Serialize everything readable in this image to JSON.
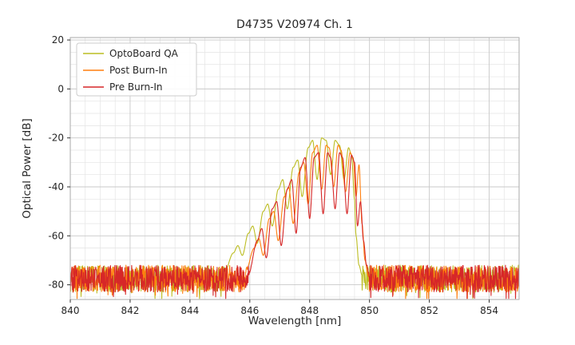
{
  "chart_data": {
    "type": "line",
    "title": "D4735 V20974 Ch. 1",
    "xlabel": "Wavelength [nm]",
    "ylabel": "Optical Power [dB]",
    "xlim": [
      840,
      855
    ],
    "ylim": [
      -86,
      21
    ],
    "xticks": [
      840,
      842,
      844,
      846,
      848,
      850,
      852,
      854
    ],
    "yticks": [
      20,
      0,
      -20,
      -40,
      -60,
      -80
    ],
    "grid": true,
    "minor_grid": true,
    "legend_position": "upper-left",
    "noise_floor": {
      "mean_db": -77.5,
      "spread_db": 11,
      "spike_prob": 0.06,
      "spike_extra_db": 6
    },
    "series": [
      {
        "name": "OptoBoard QA",
        "color": "#bcbd22",
        "seed": 11,
        "envelope": [
          [
            845.15,
            -75
          ],
          [
            845.45,
            -67
          ],
          [
            845.6,
            -64
          ],
          [
            845.75,
            -68
          ],
          [
            845.95,
            -59
          ],
          [
            846.1,
            -56
          ],
          [
            846.25,
            -63
          ],
          [
            846.45,
            -50
          ],
          [
            846.6,
            -47
          ],
          [
            846.75,
            -56
          ],
          [
            846.95,
            -41
          ],
          [
            847.1,
            -37
          ],
          [
            847.25,
            -49
          ],
          [
            847.45,
            -32
          ],
          [
            847.6,
            -29
          ],
          [
            847.75,
            -44
          ],
          [
            847.95,
            -24
          ],
          [
            848.1,
            -21
          ],
          [
            848.25,
            -37
          ],
          [
            848.4,
            -20
          ],
          [
            848.55,
            -21
          ],
          [
            848.7,
            -35
          ],
          [
            848.85,
            -21
          ],
          [
            849.0,
            -23
          ],
          [
            849.15,
            -37
          ],
          [
            849.3,
            -24
          ],
          [
            849.4,
            -27
          ],
          [
            849.5,
            -45
          ],
          [
            849.55,
            -60
          ],
          [
            849.65,
            -72
          ],
          [
            849.75,
            -76
          ]
        ]
      },
      {
        "name": "Post Burn-In",
        "color": "#ff7f0e",
        "seed": 22,
        "envelope": [
          [
            845.85,
            -75
          ],
          [
            846.15,
            -65
          ],
          [
            846.3,
            -61
          ],
          [
            846.45,
            -68
          ],
          [
            846.65,
            -53
          ],
          [
            846.8,
            -50
          ],
          [
            846.95,
            -62
          ],
          [
            847.15,
            -44
          ],
          [
            847.3,
            -40
          ],
          [
            847.45,
            -55
          ],
          [
            847.65,
            -34
          ],
          [
            847.8,
            -30
          ],
          [
            847.95,
            -47
          ],
          [
            848.1,
            -26
          ],
          [
            848.25,
            -23
          ],
          [
            848.4,
            -41
          ],
          [
            848.55,
            -23
          ],
          [
            848.65,
            -24
          ],
          [
            848.8,
            -40
          ],
          [
            848.95,
            -23
          ],
          [
            849.05,
            -25
          ],
          [
            849.2,
            -42
          ],
          [
            849.35,
            -26
          ],
          [
            849.45,
            -28
          ],
          [
            849.55,
            -44
          ],
          [
            849.65,
            -31
          ],
          [
            849.75,
            -55
          ],
          [
            849.85,
            -70
          ],
          [
            849.95,
            -76
          ]
        ]
      },
      {
        "name": "Pre Burn-In",
        "color": "#d62728",
        "seed": 33,
        "envelope": [
          [
            845.95,
            -76
          ],
          [
            846.25,
            -62
          ],
          [
            846.4,
            -57
          ],
          [
            846.55,
            -69
          ],
          [
            846.75,
            -49
          ],
          [
            846.9,
            -46
          ],
          [
            847.05,
            -64
          ],
          [
            847.25,
            -41
          ],
          [
            847.4,
            -37
          ],
          [
            847.55,
            -59
          ],
          [
            847.7,
            -32
          ],
          [
            847.85,
            -28
          ],
          [
            848.0,
            -53
          ],
          [
            848.15,
            -28
          ],
          [
            848.3,
            -26
          ],
          [
            848.45,
            -51
          ],
          [
            848.6,
            -26
          ],
          [
            848.7,
            -28
          ],
          [
            848.85,
            -49
          ],
          [
            849.0,
            -26
          ],
          [
            849.1,
            -28
          ],
          [
            849.25,
            -51
          ],
          [
            849.4,
            -27
          ],
          [
            849.5,
            -30
          ],
          [
            849.6,
            -56
          ],
          [
            849.7,
            -46
          ],
          [
            849.8,
            -62
          ],
          [
            849.9,
            -72
          ],
          [
            850.0,
            -77
          ]
        ]
      }
    ],
    "colors": {
      "major_grid": "#c9c9c9",
      "minor_grid": "#e4e4e4",
      "spine": "#aaaaaa",
      "text": "#262626"
    }
  }
}
